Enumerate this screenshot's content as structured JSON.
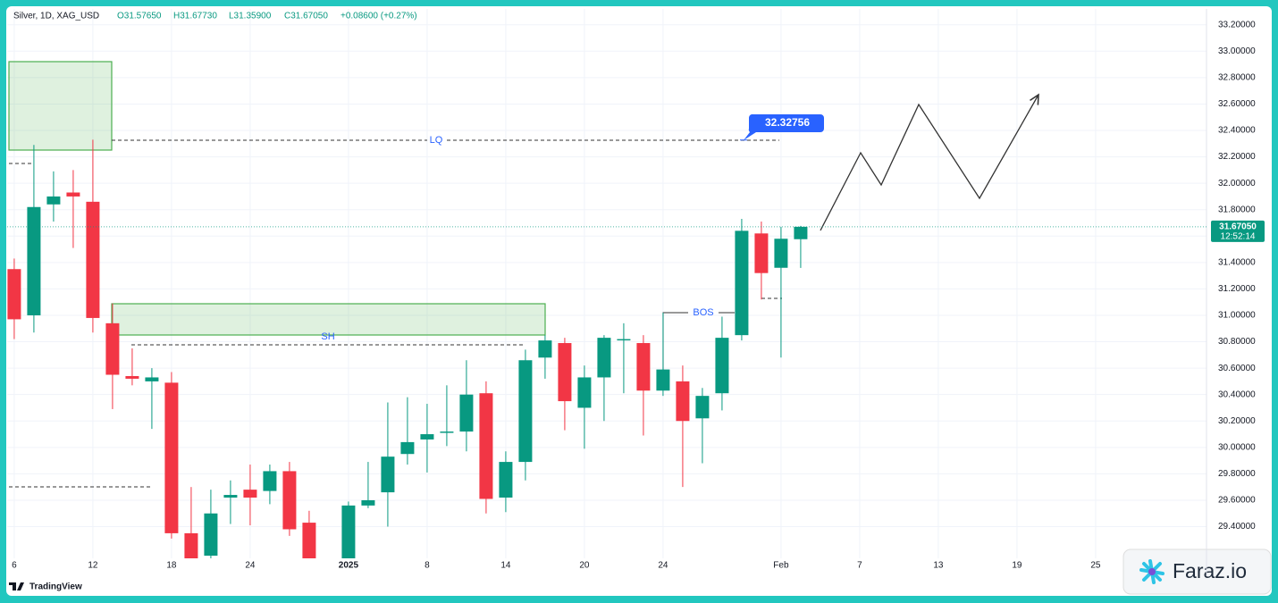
{
  "chart_data": {
    "type": "candlestick",
    "header": {
      "symbol": "Silver, 1D, XAG_USD",
      "open": "O31.57650",
      "high": "H31.67730",
      "low": "L31.35900",
      "close": "C31.67050",
      "change": "+0.08600 (+0.27%)"
    },
    "annotations": {
      "lq": "LQ",
      "sh": "SH",
      "bos": "BOS",
      "target": 32.32756,
      "target_label": "32.32756"
    },
    "last_price": 31.6705,
    "last_price_label": "31.67050",
    "countdown": "12:52:14",
    "up_color": "#089981",
    "down_color": "#f23645",
    "x": [
      0,
      1,
      2,
      3,
      4,
      5,
      6,
      7,
      8,
      9,
      10,
      11,
      12,
      13,
      14,
      15,
      17,
      18,
      19,
      20,
      21,
      22,
      23,
      24,
      25,
      26,
      27,
      28,
      29,
      30,
      31,
      32,
      33,
      34,
      35,
      36,
      37,
      38,
      39,
      40
    ],
    "open": [
      31.35,
      31.0,
      31.84,
      31.93,
      31.86,
      30.94,
      30.54,
      30.5,
      30.49,
      29.35,
      29.18,
      29.62,
      29.68,
      29.67,
      29.82,
      29.43,
      29.16,
      29.56,
      29.66,
      29.95,
      30.06,
      30.11,
      30.12,
      30.41,
      29.62,
      29.89,
      30.68,
      30.79,
      30.3,
      30.53,
      30.81,
      30.79,
      30.43,
      30.5,
      30.22,
      30.41,
      30.85,
      31.62,
      31.36,
      31.5765
    ],
    "high": [
      31.43,
      32.29,
      32.09,
      32.1,
      32.33,
      31.09,
      30.75,
      30.6,
      30.57,
      29.7,
      29.68,
      29.75,
      29.87,
      29.87,
      29.89,
      29.52,
      29.59,
      29.89,
      30.34,
      30.38,
      30.33,
      30.47,
      30.66,
      30.5,
      29.97,
      30.74,
      30.85,
      30.83,
      30.62,
      30.85,
      30.94,
      30.85,
      31.02,
      30.62,
      30.45,
      30.99,
      31.73,
      31.71,
      31.67,
      31.6773
    ],
    "low": [
      30.82,
      30.87,
      31.71,
      31.51,
      30.87,
      30.29,
      30.47,
      30.14,
      29.31,
      29.0,
      29.1,
      29.42,
      29.41,
      29.57,
      29.33,
      29.0,
      29.1,
      29.54,
      29.4,
      29.87,
      29.81,
      30.01,
      29.97,
      29.5,
      29.51,
      29.75,
      30.52,
      30.13,
      29.99,
      30.2,
      30.41,
      30.09,
      30.39,
      29.7,
      29.88,
      30.28,
      30.81,
      31.12,
      30.68,
      31.359
    ],
    "close": [
      30.97,
      31.82,
      31.9,
      31.9,
      30.98,
      30.55,
      30.52,
      30.53,
      29.35,
      29.15,
      29.5,
      29.64,
      29.62,
      29.82,
      29.38,
      29.16,
      29.56,
      29.6,
      29.93,
      30.04,
      30.1,
      30.12,
      30.4,
      29.61,
      29.89,
      30.66,
      30.81,
      30.35,
      30.53,
      30.83,
      30.82,
      30.43,
      30.59,
      30.2,
      30.39,
      30.83,
      31.64,
      31.32,
      31.58,
      31.6705
    ],
    "xlim": [
      -0.36,
      60.64
    ],
    "xticks": [
      {
        "value": 0,
        "label": "6"
      },
      {
        "value": 4,
        "label": "12"
      },
      {
        "value": 8,
        "label": "18"
      },
      {
        "value": 12,
        "label": "24"
      },
      {
        "value": 17,
        "label": "2025"
      },
      {
        "value": 21,
        "label": "8"
      },
      {
        "value": 25,
        "label": "14"
      },
      {
        "value": 29,
        "label": "20"
      },
      {
        "value": 33,
        "label": "24"
      },
      {
        "value": 39,
        "label": "Feb"
      },
      {
        "value": 43,
        "label": "7"
      },
      {
        "value": 47,
        "label": "13"
      },
      {
        "value": 51,
        "label": "19"
      },
      {
        "value": 55,
        "label": "25"
      }
    ],
    "ylim": [
      29.16,
      33.32
    ],
    "yticks": [
      {
        "value": 29.4,
        "label": "29.40000"
      },
      {
        "value": 29.6,
        "label": "29.60000"
      },
      {
        "value": 29.8,
        "label": "29.80000"
      },
      {
        "value": 30.0,
        "label": "30.00000"
      },
      {
        "value": 30.2,
        "label": "30.20000"
      },
      {
        "value": 30.4,
        "label": "30.40000"
      },
      {
        "value": 30.6,
        "label": "30.60000"
      },
      {
        "value": 30.8,
        "label": "30.80000"
      },
      {
        "value": 31.0,
        "label": "31.00000"
      },
      {
        "value": 31.2,
        "label": "31.20000"
      },
      {
        "value": 31.4,
        "label": "31.40000"
      },
      {
        "value": 31.6,
        "label": "31.60000"
      },
      {
        "value": 31.8,
        "label": "31.80000"
      },
      {
        "value": 32.0,
        "label": "32.00000"
      },
      {
        "value": 32.2,
        "label": "32.20000"
      },
      {
        "value": 32.4,
        "label": "32.40000"
      },
      {
        "value": 32.6,
        "label": "32.60000"
      },
      {
        "value": 32.8,
        "label": "32.80000"
      },
      {
        "value": 33.0,
        "label": "33.00000"
      },
      {
        "value": 33.2,
        "label": "33.20000"
      }
    ],
    "watermark": "Faraz.io",
    "logo": "TradingView"
  }
}
